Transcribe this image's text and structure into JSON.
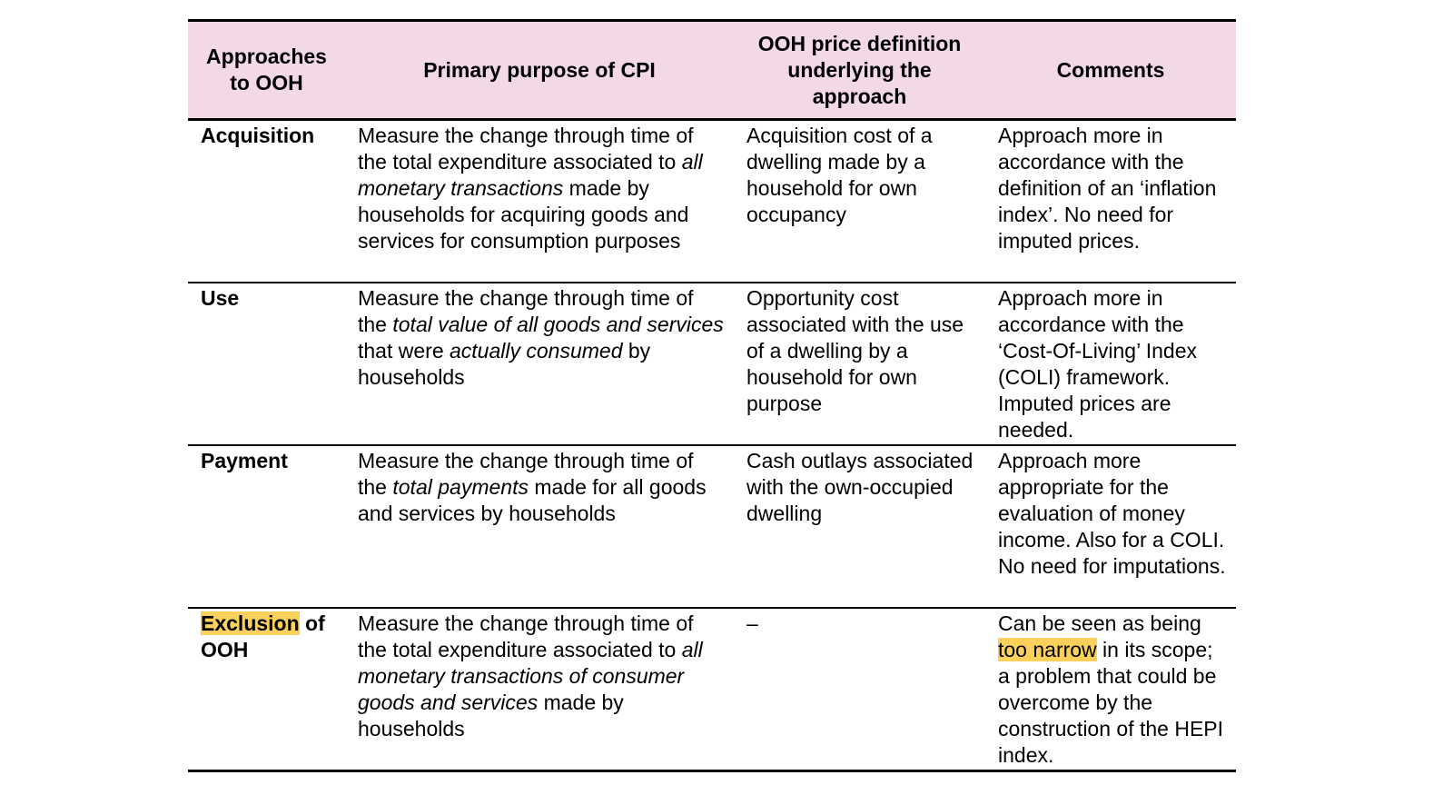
{
  "highlight_color": "#fbd05c",
  "header_color": "#f3d9e8",
  "headers": [
    "Approaches to OOH",
    "Primary purpose of CPI",
    "OOH price definition underlying the approach",
    "Comments"
  ],
  "rows": [
    {
      "approach": [
        {
          "t": "Acquisition"
        }
      ],
      "purpose": [
        {
          "t": "Measure the change through time of the total expenditure associated to "
        },
        {
          "t": "all monetary transactions",
          "i": true
        },
        {
          "t": " made by households for acquiring goods and services for consumption purposes"
        }
      ],
      "definition": [
        {
          "t": "Acquisition cost of a dwelling made by a household for own occupancy"
        }
      ],
      "comments": [
        {
          "t": "Approach more in accordance with the definition of an ‘inflation index’. No need for imputed prices."
        }
      ]
    },
    {
      "approach": [
        {
          "t": "Use"
        }
      ],
      "purpose": [
        {
          "t": "Measure the change through time of the "
        },
        {
          "t": "total value of all goods and services",
          "i": true
        },
        {
          "t": " that were "
        },
        {
          "t": "actually consumed",
          "i": true
        },
        {
          "t": " by households"
        }
      ],
      "definition": [
        {
          "t": "Opportunity cost associated with the use of a dwelling by a household for own purpose"
        }
      ],
      "comments": [
        {
          "t": "Approach more in accordance with the ‘Cost-Of-Living’ Index (COLI) framework. Imputed prices are needed."
        }
      ]
    },
    {
      "approach": [
        {
          "t": "Payment"
        }
      ],
      "purpose": [
        {
          "t": "Measure the change through time of the "
        },
        {
          "t": "total payments",
          "i": true
        },
        {
          "t": " made for all goods and services by households"
        }
      ],
      "definition": [
        {
          "t": "Cash outlays associated with the own-occupied dwelling"
        }
      ],
      "comments": [
        {
          "t": "Approach more appropriate for the evaluation of money income. Also for a COLI. No need for imputations."
        }
      ]
    },
    {
      "approach": [
        {
          "t": "Exclusion",
          "h": true
        },
        {
          "t": " of OOH"
        }
      ],
      "purpose": [
        {
          "t": "Measure the change through time of the total expenditure associated to "
        },
        {
          "t": "all monetary transactions of consumer goods and services",
          "i": true
        },
        {
          "t": " made by households"
        }
      ],
      "definition": [
        {
          "t": "–"
        }
      ],
      "comments": [
        {
          "t": "Can be seen as being "
        },
        {
          "t": "too narrow",
          "h": true
        },
        {
          "t": " in its scope; a problem that could be overcome by the construction of the HEPI index."
        }
      ]
    }
  ]
}
